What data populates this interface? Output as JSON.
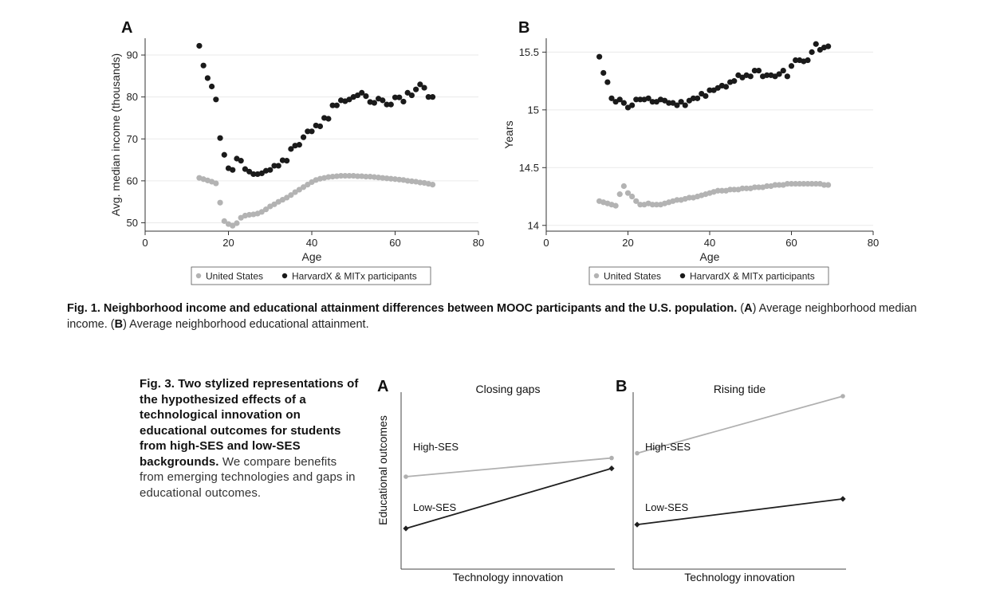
{
  "fig1": {
    "caption_bold": "Fig. 1. Neighborhood income and educational attainment differences between MOOC participants and the U.S. population.",
    "caption_part1": " (",
    "caption_a": "A",
    "caption_part2": ") Average neighborhood median income. (",
    "caption_b": "B",
    "caption_part3": ") Average neighborhood educational attainment."
  },
  "fig3": {
    "caption_bold": "Fig. 3. Two stylized representations of the hypothesized effects of a technological innovation on educational outcomes for students from high-SES and low-SES backgrounds.",
    "caption_rest": " We compare benefits from emerging technologies and gaps in educational outcomes."
  },
  "colors": {
    "us": "#b3b3b3",
    "harvardx": "#1a1a1a",
    "high_ses": "#b0b0b0",
    "low_ses": "#1f1f1f"
  },
  "chart_data": [
    {
      "panel": "A",
      "type": "scatter",
      "xlabel": "Age",
      "ylabel": "Avg. median income (thousands)",
      "xlim": [
        0,
        80
      ],
      "ylim": [
        48,
        94
      ],
      "xticks": [
        0,
        20,
        40,
        60,
        80
      ],
      "yticks": [
        50,
        60,
        70,
        80,
        90
      ],
      "grid": "horizontal",
      "legend_position": "bottom",
      "series": [
        {
          "name": "United States",
          "x": [
            13,
            14,
            15,
            16,
            17,
            18,
            19,
            20,
            21,
            22,
            23,
            24,
            25,
            26,
            27,
            28,
            29,
            30,
            31,
            32,
            33,
            34,
            35,
            36,
            37,
            38,
            39,
            40,
            41,
            42,
            43,
            44,
            45,
            46,
            47,
            48,
            49,
            50,
            51,
            52,
            53,
            54,
            55,
            56,
            57,
            58,
            59,
            60,
            61,
            62,
            63,
            64,
            65,
            66,
            67,
            68,
            69
          ],
          "y": [
            60.7,
            60.4,
            60.1,
            59.8,
            59.4,
            54.8,
            50.4,
            49.7,
            49.3,
            49.9,
            51.2,
            51.7,
            51.9,
            52.0,
            52.2,
            52.6,
            53.2,
            53.9,
            54.4,
            55.0,
            55.5,
            56.0,
            56.6,
            57.3,
            57.9,
            58.5,
            59.1,
            59.7,
            60.2,
            60.5,
            60.7,
            60.9,
            61.0,
            61.1,
            61.2,
            61.2,
            61.2,
            61.2,
            61.1,
            61.1,
            61.0,
            61.0,
            60.9,
            60.8,
            60.7,
            60.6,
            60.5,
            60.4,
            60.3,
            60.2,
            60.0,
            59.9,
            59.8,
            59.6,
            59.5,
            59.3,
            59.1
          ]
        },
        {
          "name": "HarvardX & MITx participants",
          "x": [
            13,
            14,
            15,
            16,
            17,
            18,
            19,
            20,
            21,
            22,
            23,
            24,
            25,
            26,
            27,
            28,
            29,
            30,
            31,
            32,
            33,
            34,
            35,
            36,
            37,
            38,
            39,
            40,
            41,
            42,
            43,
            44,
            45,
            46,
            47,
            48,
            49,
            50,
            51,
            52,
            53,
            54,
            55,
            56,
            57,
            58,
            59,
            60,
            61,
            62,
            63,
            64,
            65,
            66,
            67,
            68,
            69
          ],
          "y": [
            92.2,
            87.5,
            84.5,
            82.5,
            79.4,
            70.2,
            66.2,
            63.0,
            62.6,
            65.3,
            64.8,
            62.8,
            62.2,
            61.6,
            61.6,
            61.8,
            62.4,
            62.6,
            63.6,
            63.6,
            64.9,
            64.8,
            67.6,
            68.4,
            68.6,
            70.4,
            71.8,
            71.8,
            73.2,
            73.0,
            75.0,
            74.8,
            78.0,
            78.0,
            79.2,
            79.0,
            79.4,
            80.0,
            80.4,
            81.0,
            80.2,
            78.8,
            78.6,
            79.6,
            79.2,
            78.2,
            78.2,
            79.9,
            79.9,
            78.9,
            81.0,
            80.4,
            81.8,
            83.0,
            82.2,
            80.0,
            80.0
          ]
        }
      ]
    },
    {
      "panel": "B",
      "type": "scatter",
      "xlabel": "Age",
      "ylabel": "Years",
      "xlim": [
        0,
        80
      ],
      "ylim": [
        13.95,
        15.62
      ],
      "xticks": [
        0,
        20,
        40,
        60,
        80
      ],
      "yticks": [
        14,
        14.5,
        15,
        15.5
      ],
      "grid": "horizontal",
      "legend_position": "bottom",
      "series": [
        {
          "name": "United States",
          "x": [
            13,
            14,
            15,
            16,
            17,
            18,
            19,
            20,
            21,
            22,
            23,
            24,
            25,
            26,
            27,
            28,
            29,
            30,
            31,
            32,
            33,
            34,
            35,
            36,
            37,
            38,
            39,
            40,
            41,
            42,
            43,
            44,
            45,
            46,
            47,
            48,
            49,
            50,
            51,
            52,
            53,
            54,
            55,
            56,
            57,
            58,
            59,
            60,
            61,
            62,
            63,
            64,
            65,
            66,
            67,
            68,
            69
          ],
          "y": [
            14.21,
            14.2,
            14.19,
            14.18,
            14.17,
            14.27,
            14.34,
            14.28,
            14.25,
            14.21,
            14.18,
            14.18,
            14.19,
            14.18,
            14.18,
            14.18,
            14.19,
            14.2,
            14.21,
            14.22,
            14.22,
            14.23,
            14.24,
            14.24,
            14.25,
            14.26,
            14.27,
            14.28,
            14.29,
            14.3,
            14.3,
            14.3,
            14.31,
            14.31,
            14.31,
            14.32,
            14.32,
            14.32,
            14.33,
            14.33,
            14.33,
            14.34,
            14.34,
            14.35,
            14.35,
            14.35,
            14.36,
            14.36,
            14.36,
            14.36,
            14.36,
            14.36,
            14.36,
            14.36,
            14.36,
            14.35,
            14.35
          ]
        },
        {
          "name": "HarvardX & MITx participants",
          "x": [
            13,
            14,
            15,
            16,
            17,
            18,
            19,
            20,
            21,
            22,
            23,
            24,
            25,
            26,
            27,
            28,
            29,
            30,
            31,
            32,
            33,
            34,
            35,
            36,
            37,
            38,
            39,
            40,
            41,
            42,
            43,
            44,
            45,
            46,
            47,
            48,
            49,
            50,
            51,
            52,
            53,
            54,
            55,
            56,
            57,
            58,
            59,
            60,
            61,
            62,
            63,
            64,
            65,
            66,
            67,
            68,
            69
          ],
          "y": [
            15.46,
            15.32,
            15.24,
            15.1,
            15.07,
            15.09,
            15.06,
            15.02,
            15.04,
            15.09,
            15.09,
            15.09,
            15.1,
            15.07,
            15.07,
            15.09,
            15.08,
            15.06,
            15.06,
            15.04,
            15.07,
            15.04,
            15.08,
            15.1,
            15.1,
            15.14,
            15.12,
            15.17,
            15.17,
            15.19,
            15.21,
            15.2,
            15.24,
            15.25,
            15.3,
            15.28,
            15.3,
            15.29,
            15.34,
            15.34,
            15.29,
            15.3,
            15.3,
            15.29,
            15.31,
            15.34,
            15.29,
            15.38,
            15.43,
            15.43,
            15.42,
            15.43,
            15.5,
            15.57,
            15.52,
            15.54,
            15.55
          ]
        }
      ]
    },
    {
      "panel": "A",
      "type": "line",
      "title": "Closing gaps",
      "xlabel": "Technology innovation",
      "ylabel": "Educational outcomes",
      "x": [
        0,
        1
      ],
      "series": [
        {
          "name": "High-SES",
          "values": [
            0.6,
            0.78
          ]
        },
        {
          "name": "Low-SES",
          "values": [
            0.1,
            0.68
          ]
        }
      ]
    },
    {
      "panel": "B",
      "type": "line",
      "title": "Rising tide",
      "xlabel": "Technology innovation",
      "ylabel": "",
      "x": [
        0,
        1
      ],
      "series": [
        {
          "name": "High-SES",
          "values": [
            0.6,
            1.0
          ]
        },
        {
          "name": "Low-SES",
          "values": [
            0.1,
            0.28
          ]
        }
      ]
    }
  ]
}
